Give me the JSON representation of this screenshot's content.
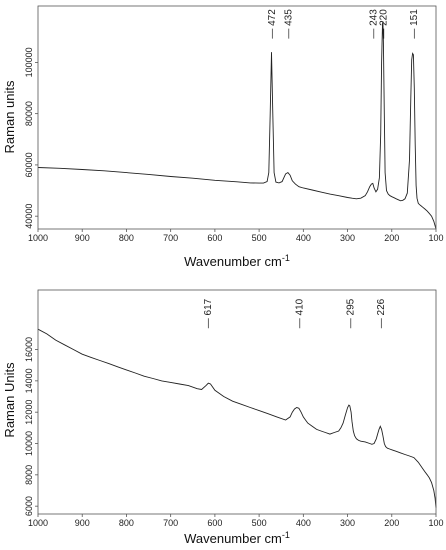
{
  "chart_data": [
    {
      "type": "line",
      "xlabel": "Wavenumber cm",
      "xlabel_sup": "-1",
      "ylabel": "Raman units",
      "xlim": [
        1000,
        100
      ],
      "ylim": [
        35000,
        122000
      ],
      "x_ticks": [
        1000,
        900,
        800,
        700,
        600,
        500,
        400,
        300,
        200,
        100
      ],
      "y_ticks": [
        40000,
        60000,
        80000,
        100000
      ],
      "annotations": [
        "472",
        "435",
        "243",
        "220",
        "151"
      ],
      "annotation_x": [
        472,
        435,
        243,
        220,
        151
      ],
      "annotation_y_data": 115000,
      "grid": false,
      "series": [
        {
          "color": "#222222",
          "x": [
            1000,
            950,
            900,
            850,
            800,
            750,
            700,
            650,
            600,
            550,
            520,
            500,
            490,
            482,
            478,
            475,
            472,
            469,
            466,
            462,
            455,
            448,
            440,
            435,
            430,
            425,
            418,
            410,
            400,
            380,
            360,
            340,
            320,
            300,
            290,
            280,
            270,
            260,
            255,
            250,
            246,
            243,
            240,
            236,
            232,
            228,
            225,
            223,
            221,
            220,
            219,
            217,
            215,
            212,
            208,
            204,
            200,
            195,
            190,
            185,
            180,
            175,
            170,
            165,
            160,
            157,
            155,
            153,
            151,
            149,
            147,
            145,
            143,
            140,
            135,
            130,
            125,
            120,
            115,
            110,
            105,
            100
          ],
          "y": [
            59000,
            58700,
            58200,
            57700,
            57000,
            56300,
            55500,
            54800,
            54000,
            53400,
            53000,
            52900,
            52900,
            53500,
            57000,
            80000,
            104000,
            80000,
            57000,
            53300,
            53000,
            53500,
            56500,
            57000,
            56000,
            53800,
            52500,
            51500,
            51000,
            50200,
            49400,
            48600,
            48000,
            47300,
            47000,
            46800,
            47000,
            48000,
            49500,
            51500,
            52500,
            52800,
            51000,
            49500,
            50500,
            55000,
            72000,
            100000,
            115000,
            116000,
            108000,
            80000,
            57000,
            50000,
            48600,
            48000,
            47600,
            47200,
            46800,
            46400,
            46000,
            46200,
            46800,
            49000,
            62000,
            86000,
            101000,
            103500,
            103000,
            90000,
            68000,
            52000,
            47000,
            45000,
            44200,
            43500,
            42800,
            42000,
            41000,
            40000,
            38000,
            35000
          ]
        }
      ]
    },
    {
      "type": "line",
      "xlabel": "Wavenumber cm",
      "xlabel_sup": "-1",
      "ylabel": "Raman Units",
      "xlim": [
        1000,
        100
      ],
      "ylim": [
        5500,
        19800
      ],
      "x_ticks": [
        1000,
        900,
        800,
        700,
        600,
        500,
        400,
        300,
        200,
        100
      ],
      "y_ticks": [
        6000,
        8000,
        10000,
        12000,
        14000,
        16000
      ],
      "annotations": [
        "617",
        "410",
        "295",
        "226"
      ],
      "annotation_x": [
        617,
        410,
        295,
        226
      ],
      "annotation_y_data": 18300,
      "grid": false,
      "series": [
        {
          "color": "#222222",
          "x": [
            1000,
            980,
            960,
            940,
            920,
            900,
            880,
            860,
            840,
            820,
            800,
            780,
            760,
            740,
            720,
            700,
            680,
            660,
            640,
            630,
            620,
            615,
            610,
            600,
            590,
            580,
            560,
            540,
            520,
            500,
            480,
            460,
            440,
            430,
            425,
            420,
            415,
            410,
            405,
            400,
            395,
            390,
            380,
            370,
            360,
            350,
            340,
            330,
            320,
            315,
            310,
            305,
            300,
            297,
            295,
            292,
            290,
            287,
            284,
            280,
            275,
            270,
            260,
            250,
            245,
            240,
            235,
            232,
            229,
            226,
            223,
            220,
            217,
            214,
            210,
            205,
            200,
            190,
            180,
            170,
            160,
            150,
            140,
            130,
            125,
            120,
            115,
            110,
            105,
            102,
            100
          ],
          "y": [
            17300,
            17000,
            16600,
            16300,
            16000,
            15700,
            15500,
            15300,
            15100,
            14900,
            14700,
            14500,
            14300,
            14150,
            14000,
            13900,
            13800,
            13700,
            13500,
            13450,
            13700,
            13850,
            13800,
            13400,
            13200,
            13000,
            12700,
            12500,
            12300,
            12100,
            11900,
            11700,
            11500,
            11700,
            12000,
            12200,
            12300,
            12250,
            12000,
            11700,
            11500,
            11300,
            11100,
            10900,
            10800,
            10700,
            10600,
            10700,
            10800,
            11000,
            11300,
            11800,
            12300,
            12450,
            12400,
            12000,
            11400,
            10800,
            10500,
            10300,
            10200,
            10150,
            10100,
            10000,
            9950,
            10000,
            10300,
            10600,
            10900,
            11100,
            10900,
            10500,
            10000,
            9800,
            9700,
            9650,
            9600,
            9500,
            9400,
            9300,
            9200,
            9100,
            8800,
            8400,
            8200,
            8000,
            7800,
            7500,
            7000,
            6500,
            5900
          ]
        }
      ]
    }
  ]
}
